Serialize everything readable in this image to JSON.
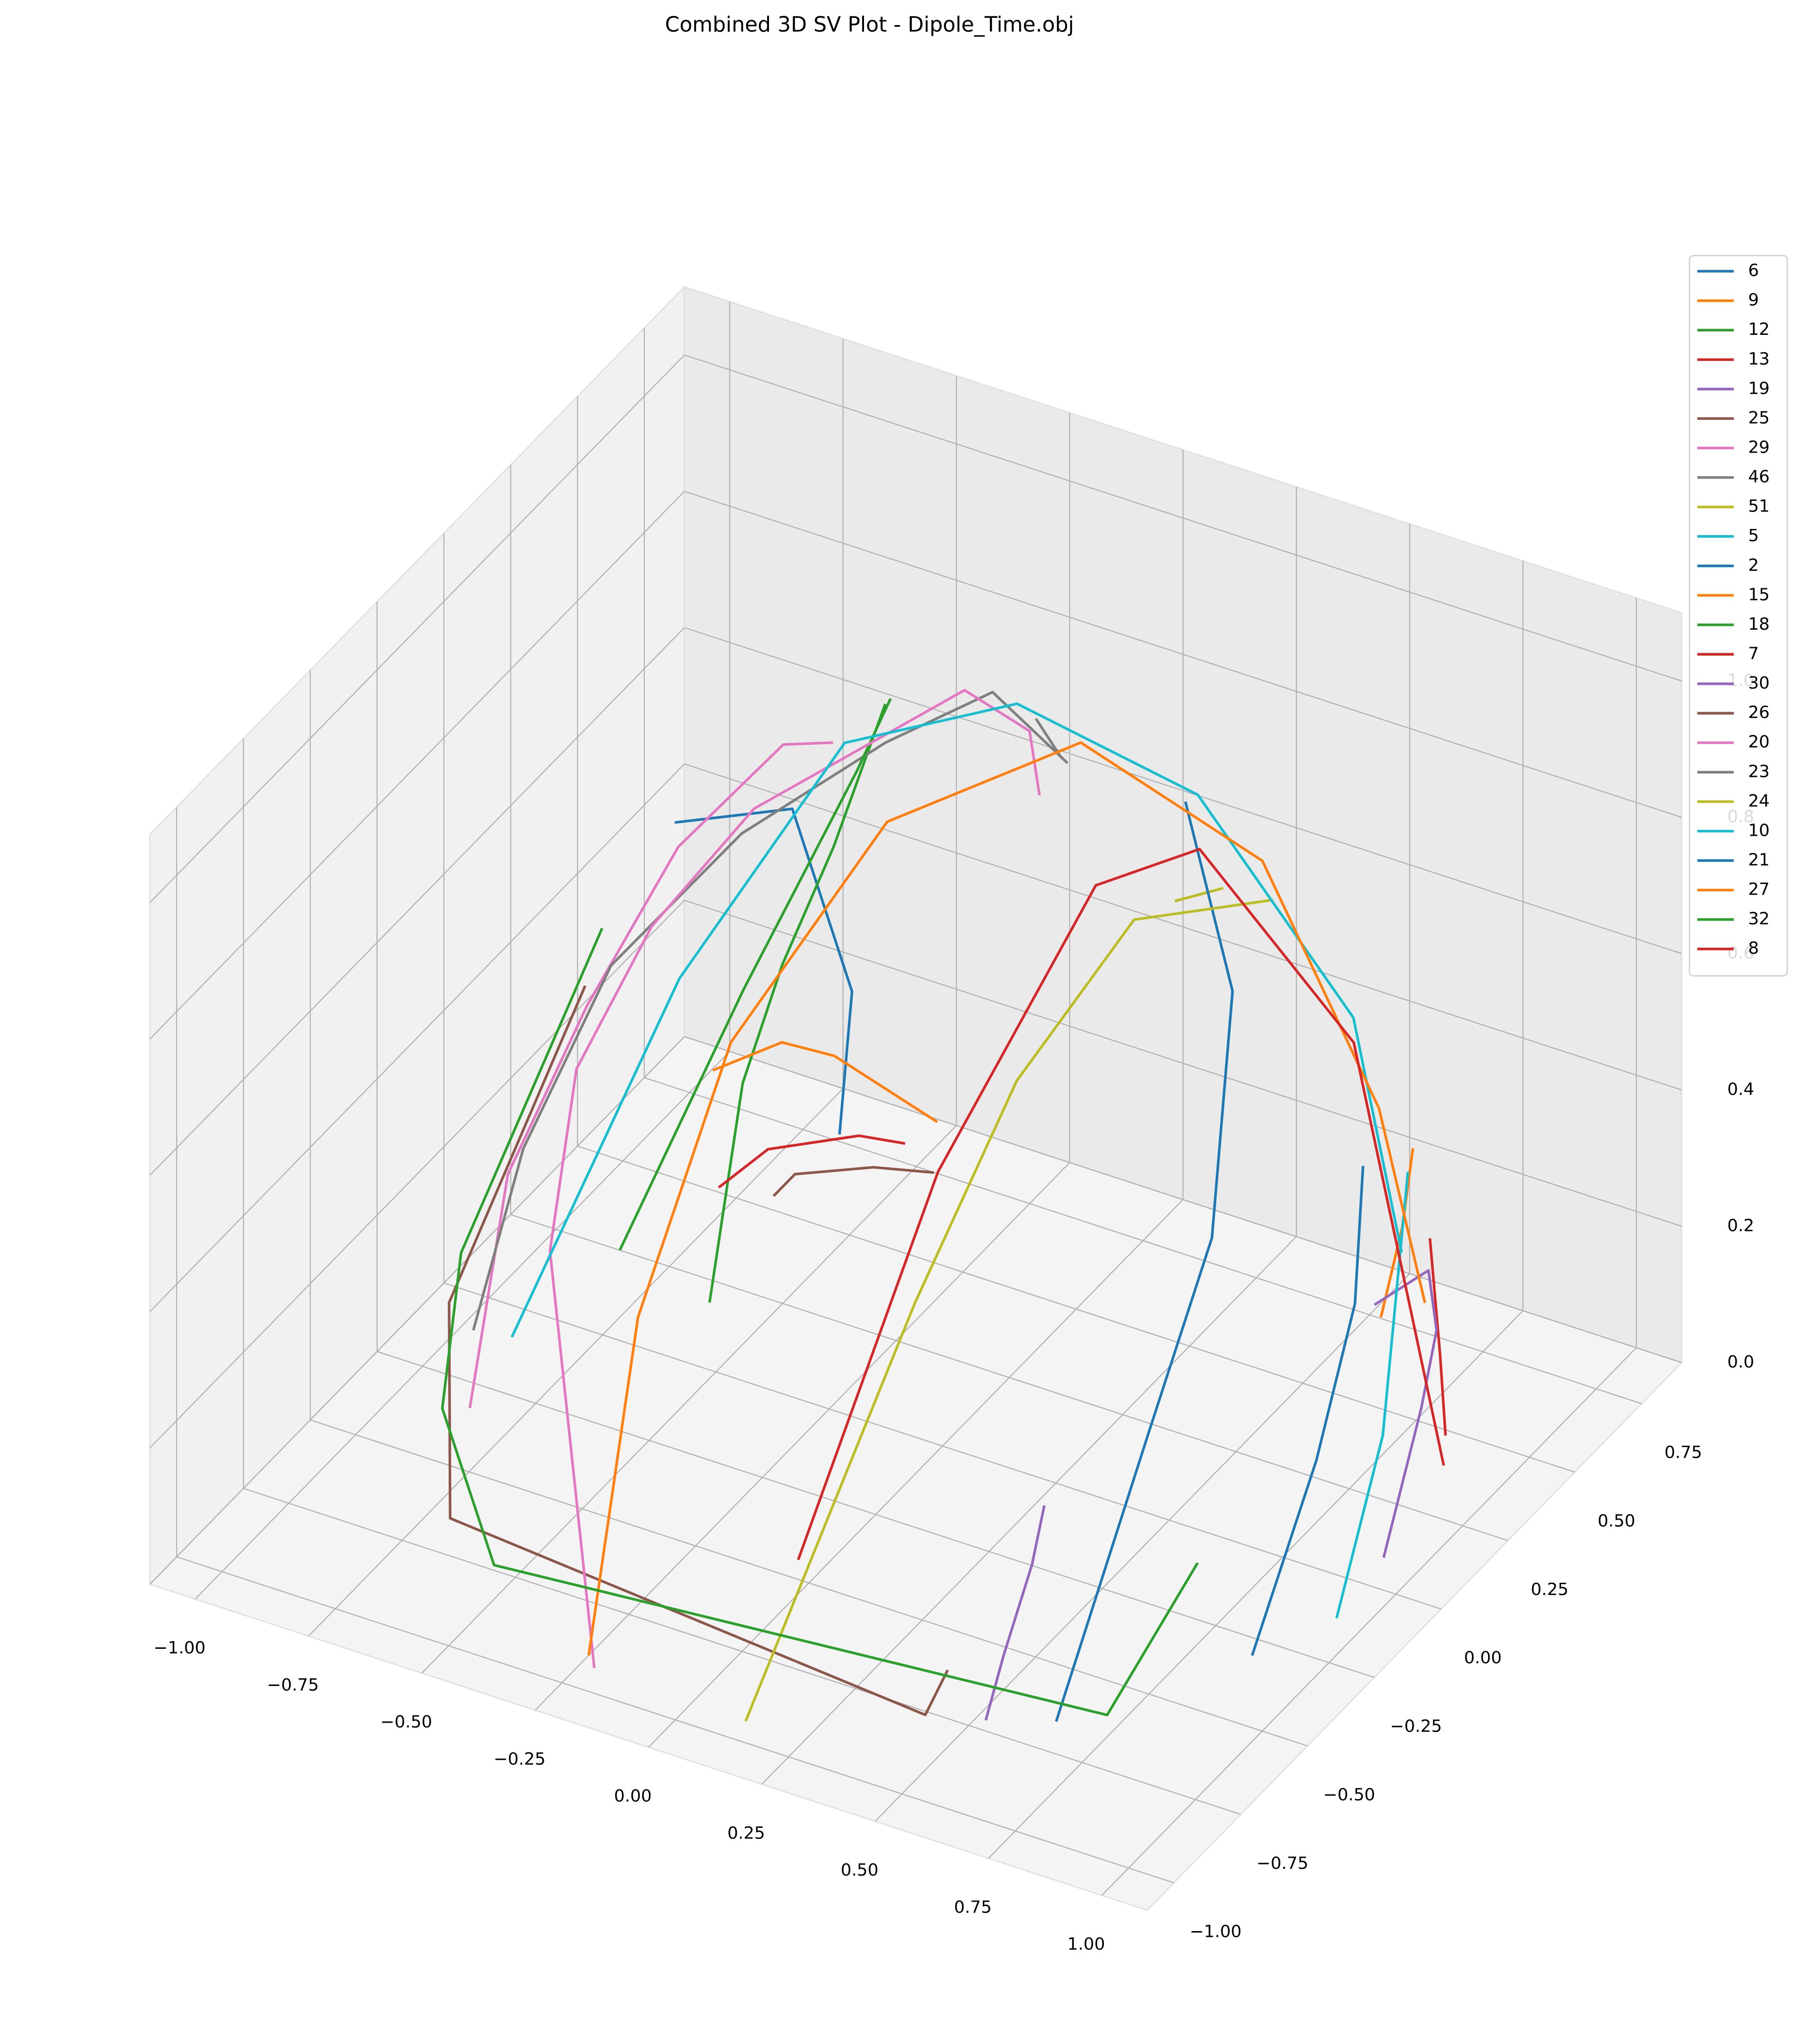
{
  "chart_data": {
    "type": "line3d",
    "title": "Combined 3D SV Plot - Dipole_Time.obj",
    "xlim": [
      -1.1,
      1.1
    ],
    "ylim": [
      -1.1,
      0.9
    ],
    "zlim": [
      0,
      1.1
    ],
    "xticks": [
      {
        "value": -1,
        "label": "−1.00"
      },
      {
        "value": -0.75,
        "label": "−0.75"
      },
      {
        "value": -0.5,
        "label": "−0.50"
      },
      {
        "value": -0.25,
        "label": "−0.25"
      },
      {
        "value": 0,
        "label": "0.00"
      },
      {
        "value": 0.25,
        "label": "0.25"
      },
      {
        "value": 0.5,
        "label": "0.50"
      },
      {
        "value": 0.75,
        "label": "0.75"
      },
      {
        "value": 1,
        "label": "1.00"
      }
    ],
    "yticks": [
      {
        "value": -1,
        "label": "−1.00"
      },
      {
        "value": -0.75,
        "label": "−0.75"
      },
      {
        "value": -0.5,
        "label": "−0.50"
      },
      {
        "value": -0.25,
        "label": "−0.25"
      },
      {
        "value": 0,
        "label": "0.00"
      },
      {
        "value": 0.25,
        "label": "0.25"
      },
      {
        "value": 0.5,
        "label": "0.50"
      },
      {
        "value": 0.75,
        "label": "0.75"
      }
    ],
    "zticks": [
      {
        "value": 0,
        "label": "0.0"
      },
      0.2,
      0.4,
      0.6,
      0.8,
      {
        "value": 1,
        "label": "1.0"
      }
    ],
    "grid": true,
    "legend": "upper right",
    "series": [
      {
        "name": "6",
        "color": "#1f77b4",
        "x": [
          -0.52,
          -0.29,
          -0.17,
          -0.18
        ],
        "y": [
          -0.12,
          -0.07,
          -0.05,
          -0.08
        ],
        "z": [
          0.85,
          0.9,
          0.65,
          0.45
        ]
      },
      {
        "name": "9",
        "color": "#ff7f0e",
        "x": [
          0.69,
          0.69,
          0.69
        ],
        "y": [
          0.47,
          0.55,
          0.59
        ],
        "z": [
          0.15,
          0.25,
          0.35
        ]
      },
      {
        "name": "12",
        "color": "#2ca02c",
        "x": [
          -0.29,
          -0.37,
          -0.33,
          -0.27,
          -0.25
        ],
        "y": [
          -0.38,
          -0.12,
          -0.04,
          0.05,
          0.21
        ],
        "z": [
          0.3,
          0.5,
          0.65,
          0.8,
          0.95
        ]
      },
      {
        "name": "13",
        "color": "#d62728",
        "x": [
          0.81,
          0.85,
          0.88
        ],
        "y": [
          0.45,
          0.42,
          0.39
        ],
        "z": [
          0.3,
          0.15,
          0.05
        ]
      },
      {
        "name": "19",
        "color": "#9467bd",
        "x": [
          0.92,
          0.85,
          0.86,
          0.86,
          0.77
        ],
        "y": [
          0.09,
          0.35,
          0.39,
          0.36,
          0.31
        ],
        "z": [
          0,
          0.1,
          0.2,
          0.3,
          0.25
        ]
      },
      {
        "name": "25",
        "color": "#8c564b",
        "x": [
          -0.19,
          -0.19,
          -0.07,
          0.04
        ],
        "y": [
          -0.31,
          -0.23,
          -0.14,
          -0.1
        ],
        "z": [
          0.45,
          0.45,
          0.45,
          0.45
        ]
      },
      {
        "name": "29",
        "color": "#e377c2",
        "x": [
          -0.63,
          -0.67,
          -0.59,
          -0.53,
          -0.41,
          -0.33
        ],
        "y": [
          -0.7,
          -0.49,
          -0.33,
          -0.09,
          0.1,
          0.15
        ],
        "z": [
          0.2,
          0.45,
          0.65,
          0.8,
          0.9,
          0.9
        ]
      },
      {
        "name": "46",
        "color": "#7f7f7f",
        "x": [
          -0.64,
          -0.63,
          -0.56,
          -0.39,
          -0.22,
          -0.09,
          0.04
        ],
        "y": [
          -0.67,
          -0.5,
          -0.29,
          -0.09,
          0.16,
          0.34,
          0.4
        ],
        "z": [
          0.3,
          0.5,
          0.7,
          0.85,
          0.92,
          0.95,
          0.85
        ]
      },
      {
        "name": "51",
        "color": "#bcbd22",
        "x": [
          0.3,
          0.36
        ],
        "y": [
          0.36,
          0.44
        ],
        "z": [
          0.72,
          0.72
        ]
      },
      {
        "name": "5",
        "color": "#17becf",
        "x": [
          0.72,
          0.83,
          0.94
        ],
        "y": [
          0.52,
          0.24,
          -0.12
        ],
        "z": [
          0.35,
          0.1,
          0
        ]
      },
      {
        "name": "2",
        "color": "#1f77b4",
        "x": [
          0.3,
          0.41,
          0.5,
          0.49,
          0.64
        ],
        "y": [
          0.4,
          0.39,
          0.16,
          -0.06,
          -0.66
        ],
        "z": [
          0.85,
          0.6,
          0.35,
          0.15,
          0
        ]
      },
      {
        "name": "15",
        "color": "#ff7f0e",
        "x": [
          -0.33,
          -0.26,
          -0.15,
          0.13
        ],
        "y": [
          -0.3,
          -0.16,
          -0.15,
          -0.24
        ],
        "z": [
          0.6,
          0.6,
          0.6,
          0.6
        ]
      },
      {
        "name": "18",
        "color": "#2ca02c",
        "x": [
          -0.47,
          -0.41,
          -0.3,
          -0.25
        ],
        "y": [
          -0.41,
          -0.05,
          0.19,
          0.23
        ],
        "z": [
          0.35,
          0.6,
          0.85,
          0.95
        ]
      },
      {
        "name": "7",
        "color": "#d62728",
        "x": [
          -0.24,
          -0.22,
          -0.09,
          0
        ],
        "y": [
          -0.43,
          -0.28,
          -0.16,
          -0.14
        ],
        "z": [
          0.5,
          0.5,
          0.5,
          0.5
        ]
      },
      {
        "name": "30",
        "color": "#9467bd",
        "x": [
          0.52,
          0.5,
          0.51,
          0.49
        ],
        "y": [
          -0.72,
          -0.62,
          -0.53,
          -0.45
        ],
        "z": [
          0,
          0.05,
          0.15,
          0.2
        ]
      },
      {
        "name": "26",
        "color": "#8c564b",
        "x": [
          -0.57,
          -0.67,
          -0.65,
          0.41,
          0.43
        ],
        "y": [
          -0.37,
          -0.71,
          -0.74,
          -0.76,
          -0.71
        ],
        "z": [
          0.7,
          0.35,
          0.05,
          0,
          0.05
        ]
      },
      {
        "name": "20",
        "color": "#e377c2",
        "x": [
          -0.22,
          -0.53,
          -0.56,
          -0.5,
          -0.41,
          -0.14,
          -0.02,
          -0.01
        ],
        "y": [
          -0.93,
          -0.57,
          -0.42,
          -0.24,
          -0.01,
          0.32,
          0.36,
          0.38
        ],
        "z": [
          0,
          0.4,
          0.6,
          0.75,
          0.85,
          0.95,
          0.9,
          0.8
        ]
      },
      {
        "name": "23",
        "color": "#7f7f7f",
        "x": [
          -0.03,
          0.02
        ],
        "y": [
          0.4,
          0.41
        ],
        "z": [
          0.9,
          0.85
        ]
      },
      {
        "name": "24",
        "color": "#bcbd22",
        "x": [
          0.12,
          0.11,
          0.14,
          0.24,
          0.44
        ],
        "y": [
          -0.94,
          -0.29,
          0.04,
          0.31,
          0.49
        ],
        "z": [
          0,
          0.35,
          0.55,
          0.7,
          0.7
        ]
      },
      {
        "name": "10",
        "color": "#17becf",
        "x": [
          -0.62,
          -0.48,
          -0.31,
          -0.03,
          0.31,
          0.6,
          0.73
        ],
        "y": [
          -0.56,
          -0.17,
          0.16,
          0.33,
          0.43,
          0.52,
          0.48
        ],
        "z": [
          0.25,
          0.65,
          0.9,
          0.95,
          0.85,
          0.55,
          0.25
        ]
      },
      {
        "name": "21",
        "color": "#1f77b4",
        "x": [
          0.58,
          0.68,
          0.76,
          0.86
        ],
        "y": [
          0.59,
          0.39,
          0.11,
          -0.3
        ],
        "z": [
          0.3,
          0.2,
          0.1,
          0
        ]
      },
      {
        "name": "27",
        "color": "#ff7f0e",
        "x": [
          -0.25,
          -0.33,
          -0.29,
          -0.11,
          0.14,
          0.47,
          0.68,
          0.74
        ],
        "y": [
          -0.9,
          -0.58,
          -0.3,
          -0.02,
          0.28,
          0.4,
          0.48,
          0.55
        ],
        "z": [
          0,
          0.35,
          0.65,
          0.9,
          0.95,
          0.8,
          0.45,
          0.15
        ]
      },
      {
        "name": "32",
        "color": "#2ca02c",
        "x": [
          -0.58,
          -0.62,
          -0.62,
          -0.5,
          0.77,
          0.84
        ],
        "y": [
          -0.29,
          -0.75,
          -0.82,
          -0.83,
          -0.69,
          -0.47
        ],
        "z": [
          0.75,
          0.45,
          0.25,
          0.05,
          0.05,
          0.2
        ]
      },
      {
        "name": "8",
        "color": "#d62728",
        "x": [
          0,
          -0.01,
          0.12,
          0.29,
          0.53,
          0.87
        ],
        "y": [
          -0.54,
          0,
          0.37,
          0.47,
          0.64,
          0.4
        ],
        "z": [
          0.05,
          0.4,
          0.7,
          0.75,
          0.45,
          0
        ]
      }
    ]
  }
}
